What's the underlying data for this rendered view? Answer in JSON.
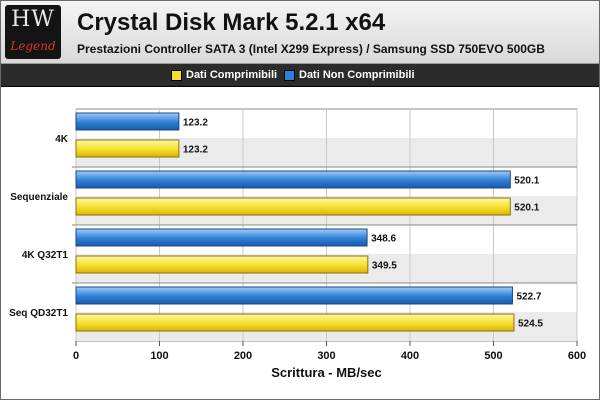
{
  "logo": {
    "mark": "HW",
    "sub": "Legend"
  },
  "header": {
    "title": "Crystal Disk Mark 5.2.1 x64",
    "subtitle": "Prestazioni Controller SATA 3 (Intel X299 Express) / Samsung SSD 750EVO 500GB"
  },
  "colors": {
    "compressible": "#f5df2a",
    "non_compressible": "#2f7fd6",
    "band": "#ebebeb"
  },
  "chart_data": {
    "type": "bar",
    "orientation": "horizontal",
    "categories": [
      "4K",
      "Sequenziale",
      "4K Q32T1",
      "Seq QD32T1"
    ],
    "series": [
      {
        "name": "Dati Non Comprimibili",
        "color": "#2f7fd6",
        "values": [
          123.2,
          520.1,
          348.6,
          522.7
        ]
      },
      {
        "name": "Dati Comprimibili",
        "color": "#f5df2a",
        "values": [
          123.2,
          520.1,
          349.5,
          524.5
        ]
      }
    ],
    "value_labels": {
      "Dati Non Comprimibili": [
        "123.2",
        "520.1",
        "348.6",
        "522.7"
      ],
      "Dati Comprimibili": [
        "123.2",
        "520.1",
        "349.5",
        "524.5"
      ]
    },
    "legend_order": [
      "Dati Comprimibili",
      "Dati Non Comprimibili"
    ],
    "legend_position": "top",
    "xlabel": "Scrittura - MB/sec",
    "ylabel": "",
    "xlim": [
      0,
      600
    ],
    "xticks": [
      0,
      100,
      200,
      300,
      400,
      500,
      600
    ],
    "grid": true
  }
}
